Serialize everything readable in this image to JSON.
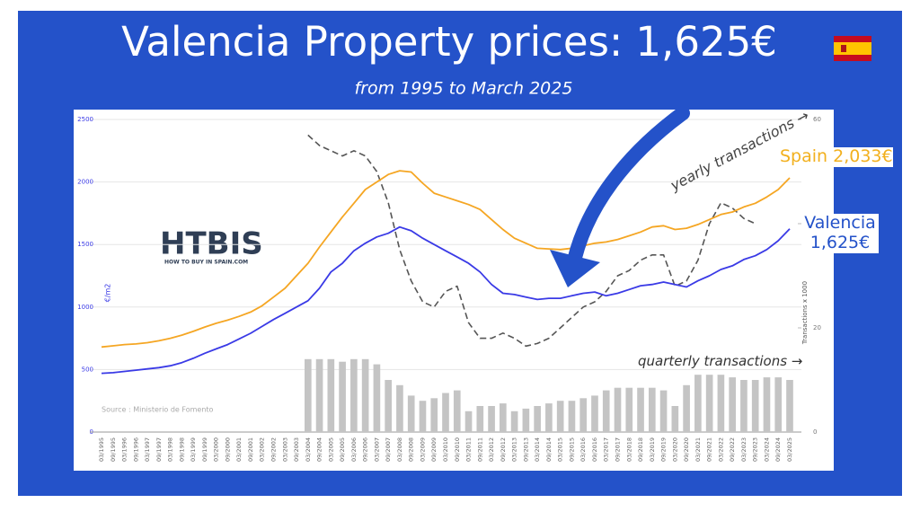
{
  "chart_data": {
    "type": "combo",
    "title": "Valencia Property prices: 1,625€",
    "subtitle": "from 1995 to March 2025",
    "y_label": "€/m2",
    "y2_label": "Transactions x 1000",
    "source": "Source : Ministerio de Fomento",
    "logo": {
      "name": "HTBIS",
      "tagline": "HOW TO BUY IN SPAIN.COM"
    },
    "annotations": [
      "Spain 2,033€",
      "Valencia 1,625€",
      "yearly transactions →",
      "quarterly transactions →"
    ],
    "categories": [
      "03/1995",
      "09/1995",
      "03/1996",
      "09/1996",
      "03/1997",
      "09/1997",
      "03/1998",
      "09/1998",
      "03/1999",
      "09/1999",
      "03/2000",
      "09/2000",
      "03/2001",
      "09/2001",
      "03/2002",
      "09/2002",
      "03/2003",
      "09/2003",
      "03/2004",
      "09/2004",
      "03/2005",
      "09/2005",
      "03/2006",
      "09/2006",
      "03/2007",
      "09/2007",
      "03/2008",
      "09/2008",
      "03/2009",
      "09/2009",
      "03/2010",
      "09/2010",
      "03/2011",
      "09/2011",
      "03/2012",
      "09/2012",
      "03/2013",
      "09/2013",
      "03/2014",
      "09/2014",
      "03/2015",
      "09/2015",
      "03/2016",
      "09/2016",
      "03/2017",
      "09/2017",
      "03/2018",
      "09/2018",
      "03/2019",
      "09/2019",
      "03/2020",
      "09/2020",
      "03/2021",
      "09/2021",
      "03/2022",
      "09/2022",
      "03/2023",
      "09/2023",
      "03/2024",
      "09/2024",
      "03/2025"
    ],
    "series": [
      {
        "type": "bar",
        "axis": "y2",
        "color": "#c4c4c4",
        "values": [
          null,
          null,
          null,
          null,
          null,
          null,
          null,
          null,
          null,
          null,
          null,
          null,
          null,
          null,
          null,
          null,
          null,
          null,
          14,
          14,
          14,
          13.5,
          14,
          14,
          13,
          10,
          9,
          7,
          6,
          6.5,
          7.5,
          8,
          4,
          5,
          5,
          5.5,
          4,
          4.5,
          5,
          5.5,
          6,
          6,
          6.5,
          7,
          8,
          8.5,
          8.5,
          8.5,
          8.5,
          8,
          5,
          9,
          11,
          11,
          11,
          10.5,
          10,
          10,
          10.5,
          10.5,
          10
        ]
      },
      {
        "type": "line",
        "axis": "y2",
        "dashed": true,
        "color": "#555555",
        "values": [
          null,
          null,
          null,
          null,
          null,
          null,
          null,
          null,
          null,
          null,
          null,
          null,
          null,
          null,
          null,
          null,
          null,
          null,
          57,
          55,
          54,
          53,
          54,
          53,
          50,
          44,
          35,
          29,
          25,
          24,
          27,
          28,
          21,
          18,
          18,
          19,
          18,
          16.5,
          17,
          18,
          20,
          22,
          24,
          25,
          27,
          30,
          31,
          33,
          34,
          34,
          28,
          29,
          33,
          40,
          44,
          43,
          41,
          40,
          null,
          null,
          null
        ]
      },
      {
        "type": "line",
        "color": "#f5a623",
        "values": [
          680,
          690,
          700,
          705,
          715,
          730,
          750,
          775,
          805,
          840,
          870,
          895,
          925,
          960,
          1010,
          1080,
          1150,
          1250,
          1350,
          1480,
          1600,
          1720,
          1830,
          1940,
          2000,
          2060,
          2090,
          2080,
          1990,
          1910,
          1880,
          1850,
          1820,
          1780,
          1700,
          1620,
          1550,
          1510,
          1470,
          1465,
          1460,
          1470,
          1490,
          1510,
          1520,
          1540,
          1570,
          1600,
          1640,
          1650,
          1620,
          1630,
          1660,
          1700,
          1740,
          1760,
          1800,
          1830,
          1880,
          1940,
          2033
        ]
      },
      {
        "type": "line",
        "color": "#3a3ae6",
        "values": [
          470,
          475,
          485,
          495,
          505,
          515,
          530,
          555,
          590,
          630,
          665,
          700,
          745,
          790,
          845,
          900,
          950,
          1000,
          1050,
          1150,
          1280,
          1350,
          1450,
          1510,
          1560,
          1590,
          1640,
          1610,
          1550,
          1500,
          1450,
          1400,
          1350,
          1280,
          1180,
          1110,
          1100,
          1080,
          1060,
          1070,
          1070,
          1090,
          1110,
          1120,
          1090,
          1110,
          1140,
          1170,
          1180,
          1200,
          1180,
          1160,
          1210,
          1250,
          1300,
          1330,
          1380,
          1410,
          1460,
          1530,
          1625
        ]
      }
    ],
    "ylim": [
      0,
      2500
    ],
    "yticks": [
      0,
      500,
      1000,
      1500,
      2000,
      2500
    ],
    "y2lim": [
      0,
      60
    ],
    "y2ticks": [
      0,
      20,
      40,
      60
    ],
    "grid": true
  }
}
